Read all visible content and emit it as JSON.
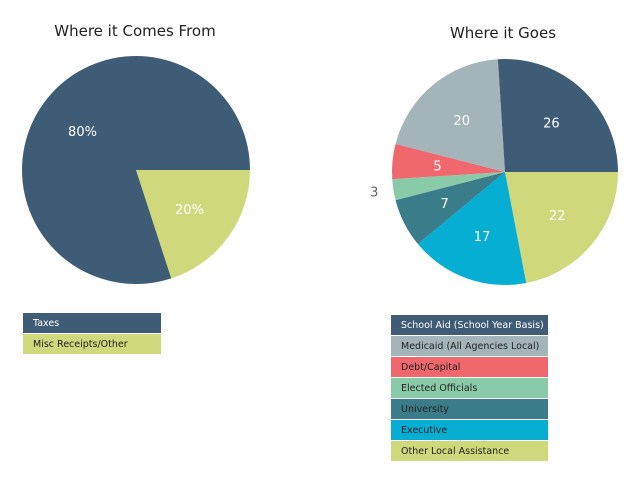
{
  "chart_data": [
    {
      "type": "pie",
      "title": "Where it Comes From",
      "start": "3-o'clock, clockwise",
      "slices": [
        {
          "label": "Misc Receipts/Other",
          "value": 20,
          "display": "20%",
          "color": "#cfd97c"
        },
        {
          "label": "Taxes",
          "value": 80,
          "display": "80%",
          "color": "#3e5c76"
        }
      ],
      "legend_order": [
        1,
        0
      ]
    },
    {
      "type": "pie",
      "title": "Where it Goes",
      "start": "3-o'clock, clockwise",
      "slices": [
        {
          "label": "Other Local Assistance",
          "value": 22,
          "display": "22",
          "color": "#cfd97c"
        },
        {
          "label": "Executive",
          "value": 17,
          "display": "17",
          "color": "#07aed4"
        },
        {
          "label": "University",
          "value": 7,
          "display": "7",
          "color": "#3a7c89"
        },
        {
          "label": "Elected Officials",
          "value": 3,
          "display": "3",
          "color": "#89cba8",
          "outside": true
        },
        {
          "label": "Debt/Capital",
          "value": 5,
          "display": "5",
          "color": "#f0676e"
        },
        {
          "label": "Medicaid (All Agencies Local)",
          "value": 20,
          "display": "20",
          "color": "#a3b5b9"
        },
        {
          "label": "School Aid (School Year Basis)",
          "value": 26,
          "display": "26",
          "color": "#3e5c76"
        }
      ],
      "legend_order": [
        6,
        5,
        4,
        3,
        2,
        1,
        0
      ]
    }
  ]
}
